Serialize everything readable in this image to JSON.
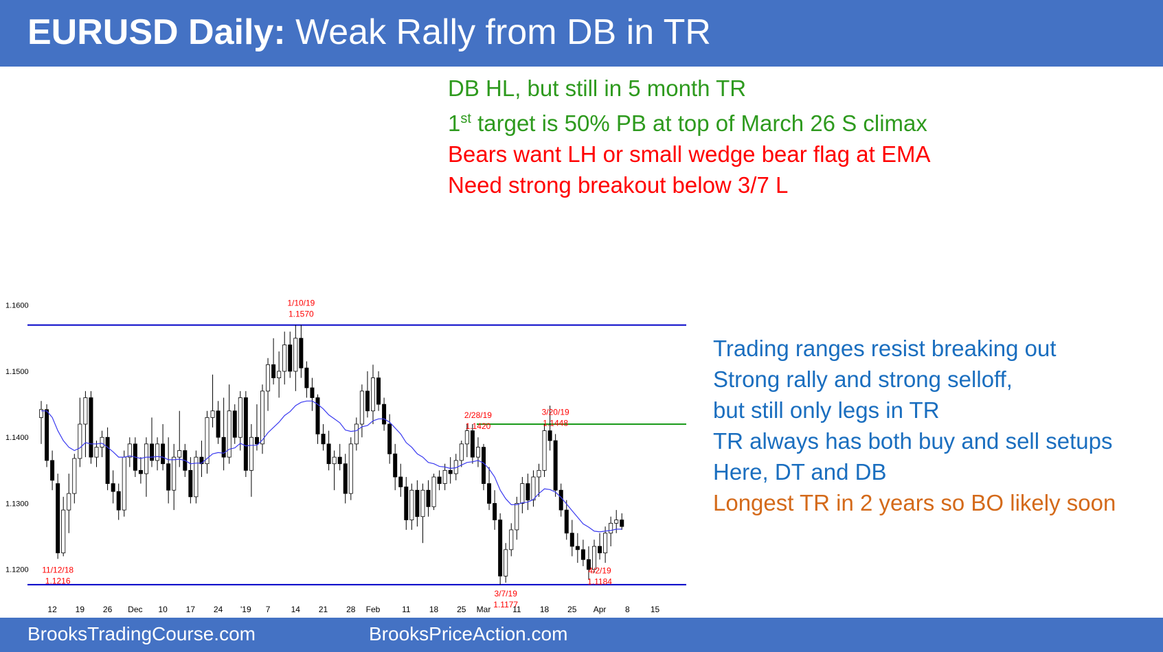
{
  "header": {
    "title_bold": "EURUSD Daily:",
    "title_rest": " Weak Rally from DB in TR"
  },
  "notes_top": {
    "line1": "DB HL, but still in 5 month TR",
    "line2_pre": "1",
    "line2_sup": "st",
    "line2_post": " target is 50% PB at top of March 26 S climax",
    "line3": "Bears want LH or small wedge bear flag at EMA",
    "line4": "Need strong breakout below 3/7 L"
  },
  "notes_side": [
    "Trading ranges resist breaking out",
    "Strong rally and strong selloff,",
    "but still only legs in TR",
    "TR always has both buy and sell setups",
    "Here, DT and DB",
    "Longest TR in 2 years so BO likely soon"
  ],
  "footer": {
    "left": "BrooksTradingCourse.com",
    "right": "BrooksPriceAction.com"
  },
  "colors": {
    "banner": "#4472c4",
    "range_line": "#0000c8",
    "resistance_line": "#1a9a1a",
    "ema": "#3a3af0",
    "bull_body": "#ffffff",
    "bear_body": "#000000",
    "annotation": "#ff0000"
  },
  "chart_data": {
    "type": "candlestick",
    "title": "EURUSD Daily",
    "y_ticks": [
      "1.1600",
      "1.1500",
      "1.1400",
      "1.1300",
      "1.1200"
    ],
    "ylim": [
      1.1127,
      1.1688
    ],
    "x_ticks": [
      {
        "label": "12",
        "i": 2
      },
      {
        "label": "19",
        "i": 7
      },
      {
        "label": "26",
        "i": 12
      },
      {
        "label": "Dec",
        "i": 17
      },
      {
        "label": "10",
        "i": 22
      },
      {
        "label": "17",
        "i": 27
      },
      {
        "label": "24",
        "i": 32
      },
      {
        "label": "'19",
        "i": 37
      },
      {
        "label": "7",
        "i": 41
      },
      {
        "label": "14",
        "i": 46
      },
      {
        "label": "21",
        "i": 51
      },
      {
        "label": "28",
        "i": 56
      },
      {
        "label": "Feb",
        "i": 60
      },
      {
        "label": "11",
        "i": 66
      },
      {
        "label": "18",
        "i": 71
      },
      {
        "label": "25",
        "i": 76
      },
      {
        "label": "Mar",
        "i": 80
      },
      {
        "label": "11",
        "i": 86
      },
      {
        "label": "18",
        "i": 91
      },
      {
        "label": "25",
        "i": 96
      },
      {
        "label": "Apr",
        "i": 101
      },
      {
        "label": "8",
        "i": 106
      },
      {
        "label": "15",
        "i": 111
      }
    ],
    "range_top": 1.157,
    "range_bottom": 1.1177,
    "resistance": {
      "value": 1.142,
      "from_i": 79
    },
    "annotations": [
      {
        "date": "1/10/19",
        "price": "1.1570",
        "i": 47,
        "pos": "above"
      },
      {
        "date": "2/28/19",
        "price": "1.1420",
        "i": 79,
        "pos": "above"
      },
      {
        "date": "3/20/19",
        "price": "1.1448",
        "i": 93,
        "pos": "above"
      },
      {
        "date": "11/12/18",
        "price": "1.1216",
        "i": 3,
        "pos": "below"
      },
      {
        "date": "3/7/19",
        "price": "1.1177",
        "i": 84,
        "pos": "below"
      },
      {
        "date": "4/2/19",
        "price": "1.1184",
        "i": 101,
        "pos": "below"
      }
    ],
    "ohlc": [
      [
        1.143,
        1.1455,
        1.139,
        1.1442
      ],
      [
        1.1442,
        1.145,
        1.1355,
        1.1365
      ],
      [
        1.1365,
        1.138,
        1.132,
        1.1335
      ],
      [
        1.133,
        1.1345,
        1.1216,
        1.1225
      ],
      [
        1.1225,
        1.131,
        1.122,
        1.129
      ],
      [
        1.129,
        1.1345,
        1.1255,
        1.1315
      ],
      [
        1.1315,
        1.1375,
        1.13,
        1.1368
      ],
      [
        1.1368,
        1.146,
        1.1355,
        1.142
      ],
      [
        1.142,
        1.147,
        1.137,
        1.146
      ],
      [
        1.146,
        1.147,
        1.136,
        1.137
      ],
      [
        1.137,
        1.1395,
        1.1355,
        1.1385
      ],
      [
        1.1385,
        1.141,
        1.137,
        1.14
      ],
      [
        1.14,
        1.1415,
        1.132,
        1.133
      ],
      [
        1.133,
        1.135,
        1.13,
        1.1318
      ],
      [
        1.1318,
        1.133,
        1.1275,
        1.129
      ],
      [
        1.129,
        1.138,
        1.128,
        1.137
      ],
      [
        1.137,
        1.14,
        1.1355,
        1.139
      ],
      [
        1.139,
        1.14,
        1.134,
        1.135
      ],
      [
        1.135,
        1.137,
        1.133,
        1.1345
      ],
      [
        1.1345,
        1.14,
        1.131,
        1.139
      ],
      [
        1.139,
        1.143,
        1.1355,
        1.1365
      ],
      [
        1.1365,
        1.14,
        1.135,
        1.139
      ],
      [
        1.139,
        1.142,
        1.135,
        1.136
      ],
      [
        1.136,
        1.14,
        1.13,
        1.132
      ],
      [
        1.132,
        1.139,
        1.129,
        1.137
      ],
      [
        1.137,
        1.144,
        1.1355,
        1.138
      ],
      [
        1.138,
        1.139,
        1.134,
        1.135
      ],
      [
        1.135,
        1.137,
        1.13,
        1.131
      ],
      [
        1.131,
        1.138,
        1.13,
        1.137
      ],
      [
        1.137,
        1.1395,
        1.134,
        1.136
      ],
      [
        1.136,
        1.144,
        1.1345,
        1.143
      ],
      [
        1.143,
        1.1495,
        1.1415,
        1.144
      ],
      [
        1.144,
        1.1455,
        1.139,
        1.14
      ],
      [
        1.14,
        1.146,
        1.135,
        1.137
      ],
      [
        1.137,
        1.148,
        1.136,
        1.144
      ],
      [
        1.144,
        1.145,
        1.139,
        1.14
      ],
      [
        1.14,
        1.147,
        1.138,
        1.146
      ],
      [
        1.146,
        1.147,
        1.134,
        1.135
      ],
      [
        1.135,
        1.142,
        1.131,
        1.14
      ],
      [
        1.14,
        1.145,
        1.138,
        1.139
      ],
      [
        1.139,
        1.148,
        1.1375,
        1.147
      ],
      [
        1.147,
        1.152,
        1.144,
        1.151
      ],
      [
        1.151,
        1.155,
        1.148,
        1.149
      ],
      [
        1.149,
        1.153,
        1.146,
        1.15
      ],
      [
        1.15,
        1.156,
        1.148,
        1.154
      ],
      [
        1.154,
        1.156,
        1.149,
        1.15
      ],
      [
        1.15,
        1.157,
        1.147,
        1.155
      ],
      [
        1.155,
        1.157,
        1.149,
        1.1505
      ],
      [
        1.1505,
        1.1515,
        1.146,
        1.1475
      ],
      [
        1.1475,
        1.149,
        1.144,
        1.146
      ],
      [
        1.146,
        1.1465,
        1.139,
        1.1405
      ],
      [
        1.1405,
        1.142,
        1.138,
        1.139
      ],
      [
        1.139,
        1.141,
        1.135,
        1.136
      ],
      [
        1.136,
        1.138,
        1.132,
        1.137
      ],
      [
        1.137,
        1.139,
        1.135,
        1.136
      ],
      [
        1.136,
        1.1375,
        1.13,
        1.1315
      ],
      [
        1.1315,
        1.14,
        1.1305,
        1.139
      ],
      [
        1.139,
        1.143,
        1.138,
        1.142
      ],
      [
        1.142,
        1.148,
        1.14,
        1.147
      ],
      [
        1.147,
        1.15,
        1.143,
        1.144
      ],
      [
        1.144,
        1.151,
        1.142,
        1.149
      ],
      [
        1.149,
        1.15,
        1.144,
        1.145
      ],
      [
        1.145,
        1.146,
        1.141,
        1.142
      ],
      [
        1.142,
        1.1435,
        1.136,
        1.1375
      ],
      [
        1.1375,
        1.139,
        1.132,
        1.134
      ],
      [
        1.134,
        1.136,
        1.131,
        1.1325
      ],
      [
        1.1325,
        1.134,
        1.126,
        1.1275
      ],
      [
        1.1275,
        1.133,
        1.126,
        1.132
      ],
      [
        1.132,
        1.1335,
        1.1265,
        1.128
      ],
      [
        1.128,
        1.133,
        1.124,
        1.132
      ],
      [
        1.132,
        1.1335,
        1.128,
        1.1295
      ],
      [
        1.1295,
        1.1345,
        1.129,
        1.134
      ],
      [
        1.134,
        1.135,
        1.132,
        1.133
      ],
      [
        1.133,
        1.136,
        1.132,
        1.135
      ],
      [
        1.135,
        1.137,
        1.133,
        1.1345
      ],
      [
        1.1345,
        1.1375,
        1.1335,
        1.1365
      ],
      [
        1.1365,
        1.1395,
        1.1355,
        1.139
      ],
      [
        1.139,
        1.142,
        1.137,
        1.141
      ],
      [
        1.141,
        1.142,
        1.136,
        1.137
      ],
      [
        1.137,
        1.14,
        1.1355,
        1.1385
      ],
      [
        1.1385,
        1.139,
        1.132,
        1.133
      ],
      [
        1.133,
        1.1355,
        1.129,
        1.13
      ],
      [
        1.13,
        1.132,
        1.126,
        1.1275
      ],
      [
        1.1275,
        1.1285,
        1.1177,
        1.119
      ],
      [
        1.119,
        1.124,
        1.118,
        1.123
      ],
      [
        1.123,
        1.127,
        1.122,
        1.126
      ],
      [
        1.126,
        1.131,
        1.1245,
        1.13
      ],
      [
        1.13,
        1.134,
        1.1285,
        1.133
      ],
      [
        1.133,
        1.1345,
        1.129,
        1.1305
      ],
      [
        1.1305,
        1.135,
        1.1295,
        1.134
      ],
      [
        1.134,
        1.136,
        1.131,
        1.135
      ],
      [
        1.135,
        1.142,
        1.134,
        1.141
      ],
      [
        1.141,
        1.1448,
        1.138,
        1.1395
      ],
      [
        1.1395,
        1.1405,
        1.131,
        1.132
      ],
      [
        1.132,
        1.133,
        1.128,
        1.129
      ],
      [
        1.129,
        1.1305,
        1.1245,
        1.1255
      ],
      [
        1.1255,
        1.1275,
        1.122,
        1.1235
      ],
      [
        1.1235,
        1.1255,
        1.121,
        1.123
      ],
      [
        1.123,
        1.1245,
        1.1205,
        1.1215
      ],
      [
        1.1215,
        1.1235,
        1.1184,
        1.12
      ],
      [
        1.12,
        1.1245,
        1.1195,
        1.1235
      ],
      [
        1.1235,
        1.1255,
        1.1215,
        1.1225
      ],
      [
        1.1225,
        1.1265,
        1.121,
        1.1255
      ],
      [
        1.1255,
        1.128,
        1.1235,
        1.127
      ],
      [
        1.127,
        1.129,
        1.1255,
        1.1275
      ],
      [
        1.1275,
        1.1285,
        1.126,
        1.1265
      ]
    ],
    "ema": [
      1.144,
      1.144,
      1.143,
      1.141,
      1.1395,
      1.1385,
      1.138,
      1.1384,
      1.1392,
      1.139,
      1.139,
      1.1391,
      1.1385,
      1.1378,
      1.137,
      1.137,
      1.1372,
      1.137,
      1.1368,
      1.137,
      1.137,
      1.1371,
      1.137,
      1.1366,
      1.1366,
      1.1367,
      1.1365,
      1.136,
      1.1361,
      1.1361,
      1.1368,
      1.1375,
      1.1377,
      1.1376,
      1.1382,
      1.1384,
      1.1391,
      1.1387,
      1.1388,
      1.1388,
      1.1396,
      1.1407,
      1.1415,
      1.1423,
      1.1433,
      1.1439,
      1.1448,
      1.1453,
      1.1455,
      1.1455,
      1.145,
      1.1443,
      1.1434,
      1.1428,
      1.1422,
      1.1411,
      1.1409,
      1.141,
      1.1416,
      1.1418,
      1.1425,
      1.1428,
      1.1428,
      1.1423,
      1.1414,
      1.1405,
      1.1392,
      1.1385,
      1.1375,
      1.137,
      1.1362,
      1.136,
      1.1356,
      1.1355,
      1.1353,
      1.1354,
      1.1358,
      1.1362,
      1.1363,
      1.1365,
      1.1361,
      1.1352,
      1.134,
      1.132,
      1.1307,
      1.1298,
      1.1298,
      1.1301,
      1.1302,
      1.1306,
      1.1315,
      1.1322,
      1.1321,
      1.1317,
      1.1309,
      1.1299,
      1.1289,
      1.1279,
      1.1269,
      1.1264,
      1.1258,
      1.1257,
      1.1258,
      1.1259,
      1.1261,
      1.1261
    ]
  }
}
